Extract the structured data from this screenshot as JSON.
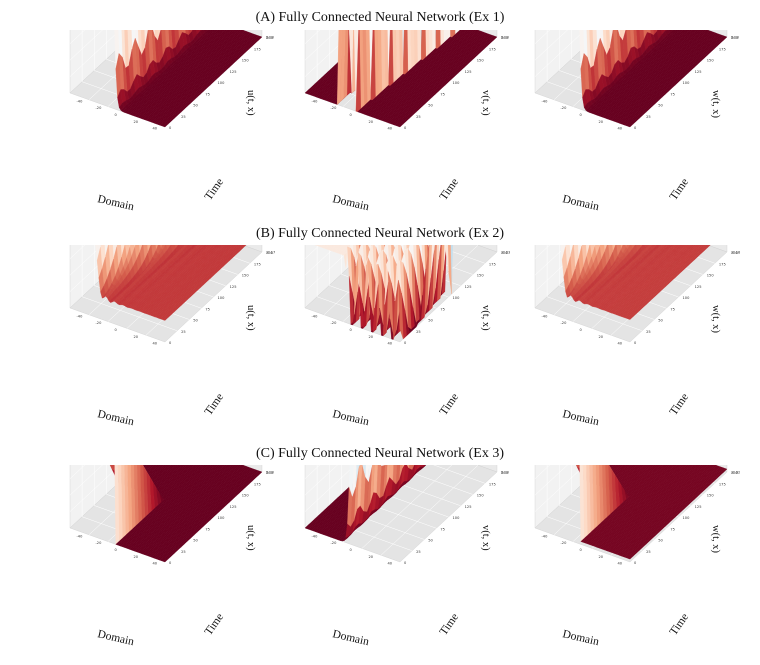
{
  "rows": [
    {
      "title": "(A) Fully Connected Neural Network (Ex 1)"
    },
    {
      "title": "(B) Fully Connected Neural Network (Ex 2)"
    },
    {
      "title": "(C) Fully Connected Neural Network (Ex 3)"
    }
  ],
  "chart_data": [
    {
      "type": "surface3d",
      "row": 0,
      "col": 0,
      "shape": "front",
      "params": {
        "lo": 0.0,
        "hi": 1.0,
        "left": true
      },
      "zlabel": "u(t, x)",
      "xlabel": "Domain",
      "ylabel": "Time",
      "zlim": [
        0.0,
        1.0
      ],
      "zticks": [
        "0.00",
        "0.11",
        "0.22",
        "0.33",
        "0.44",
        "0.56",
        "0.67",
        "0.78",
        "0.89",
        "1.00"
      ],
      "xticks": [
        "-40",
        "-20",
        "0",
        "20",
        "40"
      ],
      "yticks": [
        "0",
        "25",
        "50",
        "75",
        "100",
        "125",
        "150",
        "175",
        "200"
      ]
    },
    {
      "type": "surface3d",
      "row": 0,
      "col": 1,
      "shape": "ridge",
      "params": {
        "lo": 0.0,
        "hi": 1.0
      },
      "zlabel": "v(t, x)",
      "xlabel": "Domain",
      "ylabel": "Time",
      "zlim": [
        0.0,
        1.0
      ],
      "zticks": [
        "0.00",
        "0.11",
        "0.22",
        "0.33",
        "0.44",
        "0.56",
        "0.67",
        "0.78",
        "0.89",
        "1.00"
      ],
      "xticks": [
        "-40",
        "-20",
        "0",
        "20",
        "40"
      ],
      "yticks": [
        "0",
        "25",
        "50",
        "75",
        "100",
        "125",
        "150",
        "175",
        "200"
      ]
    },
    {
      "type": "surface3d",
      "row": 0,
      "col": 2,
      "shape": "front",
      "params": {
        "lo": 0.0,
        "hi": 1.0,
        "left": true
      },
      "zlabel": "w(t, x)",
      "xlabel": "Domain",
      "ylabel": "Time",
      "zlim": [
        0.0,
        1.0
      ],
      "zticks": [
        "0.00",
        "0.11",
        "0.22",
        "0.33",
        "0.44",
        "0.56",
        "0.67",
        "0.78",
        "0.89",
        "1.00"
      ],
      "xticks": [
        "-40",
        "-20",
        "0",
        "20",
        "40"
      ],
      "yticks": [
        "0",
        "25",
        "50",
        "75",
        "100",
        "125",
        "150",
        "175",
        "200"
      ]
    },
    {
      "type": "surface3d",
      "row": 1,
      "col": 0,
      "shape": "decay",
      "params": {
        "lo": -0.17,
        "hi": 1.0
      },
      "zlabel": "u(t, x)",
      "xlabel": "Domain",
      "ylabel": "Time",
      "zlim": [
        -0.17,
        1.0
      ],
      "zticks": [
        "-0.17",
        "-0.04",
        "0.09",
        "0.22",
        "0.35",
        "0.48",
        "0.61",
        "0.74",
        "0.87",
        "1.00"
      ],
      "xticks": [
        "-40",
        "-20",
        "0",
        "20",
        "40"
      ],
      "yticks": [
        "0",
        "25",
        "50",
        "75",
        "100",
        "125",
        "150",
        "175",
        "200"
      ]
    },
    {
      "type": "surface3d",
      "row": 1,
      "col": 1,
      "shape": "ex2v",
      "params": {
        "lo": -0.23,
        "hi": 1.0
      },
      "zlabel": "v(t, x)",
      "xlabel": "Domain",
      "ylabel": "Time",
      "zlim": [
        -0.23,
        1.0
      ],
      "zticks": [
        "-0.23",
        "-0.09",
        "0.05",
        "0.19",
        "0.32",
        "0.46",
        "0.60",
        "0.73",
        "0.87",
        "1.00"
      ],
      "xticks": [
        "-40",
        "-20",
        "0",
        "20",
        "40"
      ],
      "yticks": [
        "0",
        "25",
        "50",
        "75",
        "100",
        "125",
        "150",
        "175",
        "200"
      ]
    },
    {
      "type": "surface3d",
      "row": 1,
      "col": 2,
      "shape": "decay",
      "params": {
        "lo": -0.18,
        "hi": 1.01
      },
      "zlabel": "w(t, x)",
      "xlabel": "Domain",
      "ylabel": "Time",
      "zlim": [
        -0.18,
        1.01
      ],
      "zticks": [
        "-0.18",
        "-0.05",
        "0.09",
        "0.22",
        "0.35",
        "0.48",
        "0.61",
        "0.75",
        "0.88",
        "1.01"
      ],
      "xticks": [
        "-40",
        "-20",
        "0",
        "20",
        "40"
      ],
      "yticks": [
        "0",
        "25",
        "50",
        "75",
        "100",
        "125",
        "150",
        "175",
        "200"
      ]
    },
    {
      "type": "surface3d",
      "row": 2,
      "col": 0,
      "shape": "spike",
      "params": {
        "lo": 0.0,
        "hi": 1.0
      },
      "zlabel": "u(t, x)",
      "xlabel": "Domain",
      "ylabel": "Time",
      "zlim": [
        0.0,
        1.0
      ],
      "zticks": [
        "0.00",
        "0.11",
        "0.22",
        "0.33",
        "0.44",
        "0.56",
        "0.67",
        "0.78",
        "0.89",
        "1.00"
      ],
      "xticks": [
        "-40",
        "-20",
        "0",
        "20",
        "40"
      ],
      "yticks": [
        "0",
        "25",
        "50",
        "75",
        "100",
        "125",
        "150",
        "175",
        "200"
      ]
    },
    {
      "type": "surface3d",
      "row": 2,
      "col": 1,
      "shape": "front",
      "params": {
        "lo": 0.0,
        "hi": 1.0,
        "left": false
      },
      "zlabel": "v(t, x)",
      "xlabel": "Domain",
      "ylabel": "Time",
      "zlim": [
        0.0,
        1.0
      ],
      "zticks": [
        "0.00",
        "0.11",
        "0.22",
        "0.33",
        "0.44",
        "0.56",
        "0.67",
        "0.78",
        "0.89",
        "1.00"
      ],
      "xticks": [
        "-40",
        "-20",
        "0",
        "20",
        "40"
      ],
      "yticks": [
        "0",
        "25",
        "50",
        "75",
        "100",
        "125",
        "150",
        "175",
        "200"
      ]
    },
    {
      "type": "surface3d",
      "row": 2,
      "col": 2,
      "shape": "spike",
      "params": {
        "lo": -0.02,
        "hi": 1.0
      },
      "zlabel": "w(t, x)",
      "xlabel": "Domain",
      "ylabel": "Time",
      "zlim": [
        -0.02,
        1.0
      ],
      "zticks": [
        "-0.02",
        "0.09",
        "0.20",
        "0.32",
        "0.43",
        "0.54",
        "0.66",
        "0.77",
        "0.88",
        "1.00"
      ],
      "xticks": [
        "-40",
        "-20",
        "0",
        "20",
        "40"
      ],
      "yticks": [
        "0",
        "25",
        "50",
        "75",
        "100",
        "125",
        "150",
        "175",
        "200"
      ]
    }
  ]
}
